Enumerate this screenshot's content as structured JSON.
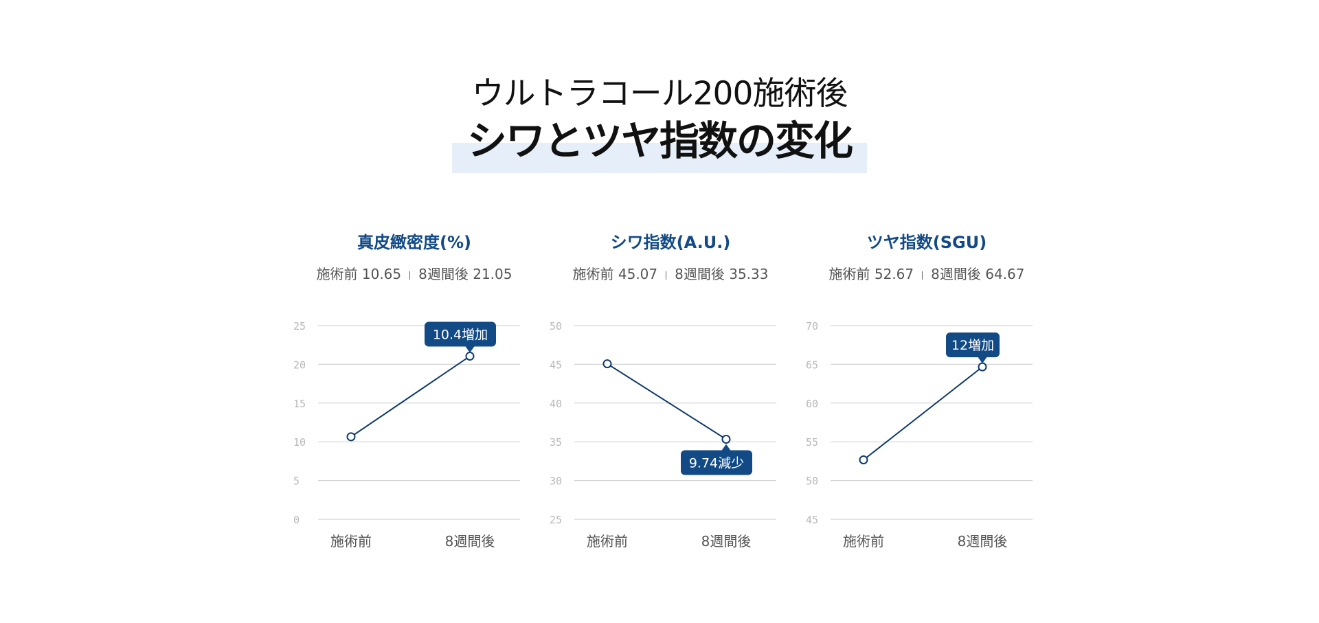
{
  "header": {
    "subtitle": "ウルトラコール200施術後",
    "title": "シワとツヤ指数の変化"
  },
  "colors": {
    "accent": "#124a86",
    "line": "#0e3a6b",
    "grid": "#d4d4d4",
    "tick": "#b8b8b8",
    "category": "#555555",
    "highlight": "#e6eff9"
  },
  "chart_data": [
    {
      "type": "line",
      "title": "真皮緻密度(%)",
      "summary_before": "施術前 10.65",
      "summary_after": "8週間後 21.05",
      "categories": [
        "施術前",
        "8週間後"
      ],
      "values": [
        10.65,
        21.05
      ],
      "ylim": [
        0,
        25
      ],
      "yticks": [
        0,
        5,
        10,
        15,
        20,
        25
      ],
      "annotation": {
        "text": "10.4増加",
        "point": 1,
        "position": "above"
      },
      "grid": true
    },
    {
      "type": "line",
      "title": "シワ指数(A.U.)",
      "summary_before": "施術前 45.07",
      "summary_after": "8週間後 35.33",
      "categories": [
        "施術前",
        "8週間後"
      ],
      "values": [
        45.07,
        35.33
      ],
      "ylim": [
        25,
        50
      ],
      "yticks": [
        25,
        30,
        35,
        40,
        45,
        50
      ],
      "annotation": {
        "text": "9.74減少",
        "point": 1,
        "position": "below"
      },
      "grid": true
    },
    {
      "type": "line",
      "title": "ツヤ指数(SGU)",
      "summary_before": "施術前 52.67",
      "summary_after": "8週間後 64.67",
      "categories": [
        "施術前",
        "8週間後"
      ],
      "values": [
        52.67,
        64.67
      ],
      "ylim": [
        45,
        70
      ],
      "yticks": [
        45,
        50,
        55,
        60,
        65,
        70
      ],
      "annotation": {
        "text": "12増加",
        "point": 1,
        "position": "above"
      },
      "grid": true
    }
  ]
}
